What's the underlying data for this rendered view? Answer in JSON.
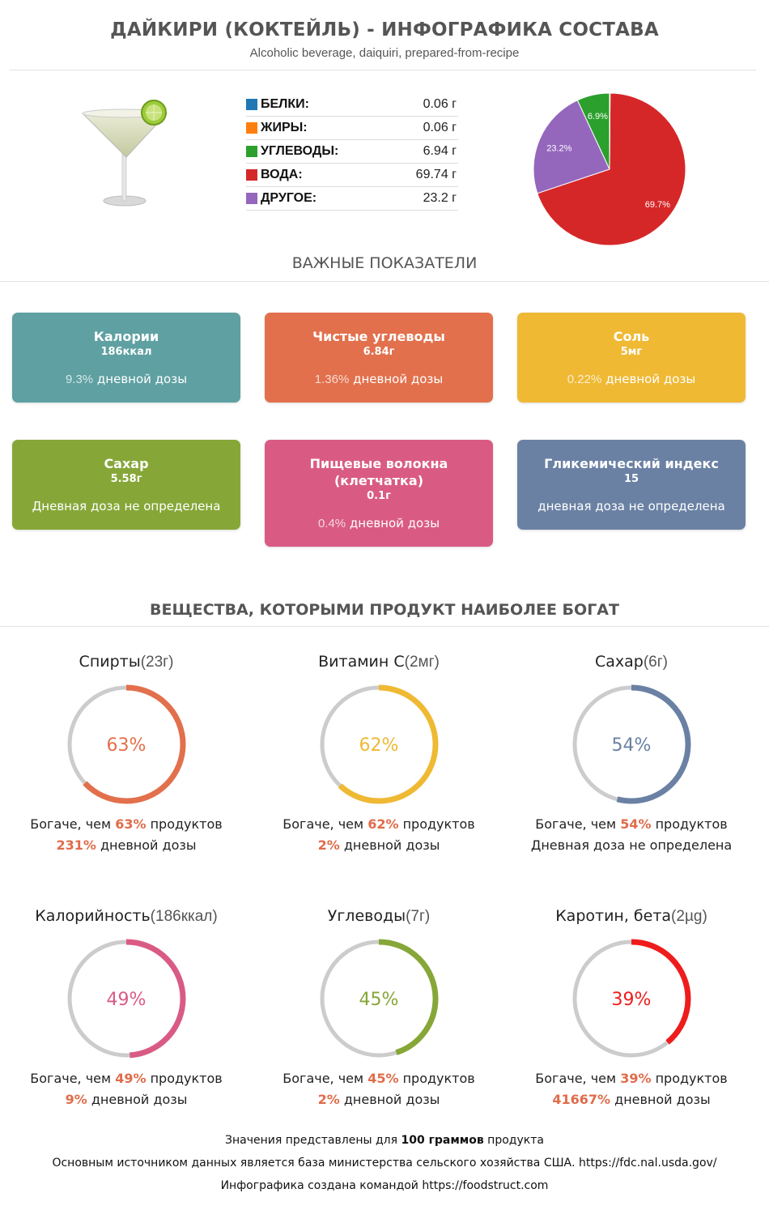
{
  "header": {
    "title": "ДАЙКИРИ (КОКТЕЙЛЬ) - ИНФОГРАФИКА СОСТАВА",
    "subtitle": "Alcoholic beverage, daiquiri, prepared-from-recipe"
  },
  "macros": [
    {
      "label": "БЕЛКИ:",
      "value": "0.06 г",
      "color": "#1f77b4"
    },
    {
      "label": "ЖИРЫ:",
      "value": "0.06 г",
      "color": "#ff7f0e"
    },
    {
      "label": "УГЛЕВОДЫ:",
      "value": "6.94 г",
      "color": "#2ca02c"
    },
    {
      "label": "ВОДА:",
      "value": "69.74 г",
      "color": "#d62728"
    },
    {
      "label": "ДРУГОЕ:",
      "value": "23.2 г",
      "color": "#9467bd"
    }
  ],
  "chart_data": {
    "type": "pie",
    "categories": [
      "Белки",
      "Жиры",
      "Углеводы",
      "Вода",
      "Другое"
    ],
    "values": [
      0.06,
      0.06,
      6.94,
      69.74,
      23.2
    ],
    "slice_labels": [
      "",
      "",
      "6.9%",
      "69.7%",
      "23.2%"
    ],
    "colors": [
      "#1f77b4",
      "#ff7f0e",
      "#2ca02c",
      "#d62728",
      "#9467bd"
    ]
  },
  "key_section": {
    "title": "ВАЖНЫЕ ПОКАЗАТЕЛИ"
  },
  "cards": [
    {
      "name": "Калории",
      "value": "186ккал",
      "pct": "9.3%",
      "dv_text": " дневной дозы",
      "color": "#5fa0a2"
    },
    {
      "name": "Чистые углеводы",
      "value": "6.84г",
      "pct": "1.36%",
      "dv_text": " дневной дозы",
      "color": "#e2704c"
    },
    {
      "name": "Соль",
      "value": "5мг",
      "pct": "0.22%",
      "dv_text": " дневной дозы",
      "color": "#efb934"
    },
    {
      "name": "Сахар",
      "value": "5.58г",
      "pct": "",
      "dv_text": "Дневная доза не определена",
      "color": "#86a738"
    },
    {
      "name": "Пищевые волокна (клетчатка)",
      "value": "0.1г",
      "pct": "0.4%",
      "dv_text": " дневной дозы",
      "color": "#d95b84"
    },
    {
      "name": "Гликемический индекс",
      "value": "15",
      "pct": "",
      "dv_text": "дневная доза не определена",
      "color": "#6a81a4"
    }
  ],
  "rich_section": {
    "title": "ВЕЩЕСТВА, КОТОРЫМИ ПРОДУКТ НАИБОЛЕЕ БОГАТ"
  },
  "rich_items": [
    {
      "name": "Спирты",
      "amount": "(23г)",
      "percent": 63,
      "percent_text": "63%",
      "color": "#e2704c",
      "line1_pre": "Богаче, чем ",
      "line1_pct": "63%",
      "line1_post": " продуктов",
      "line2_pct": "231%",
      "line2_post": " дневной дозы"
    },
    {
      "name": "Витамин C",
      "amount": "(2мг)",
      "percent": 62,
      "percent_text": "62%",
      "color": "#efb934",
      "line1_pre": "Богаче, чем ",
      "line1_pct": "62%",
      "line1_post": " продуктов",
      "line2_pct": "2%",
      "line2_post": " дневной дозы"
    },
    {
      "name": "Сахар",
      "amount": "(6г)",
      "percent": 54,
      "percent_text": "54%",
      "color": "#6a81a4",
      "line1_pre": "Богаче, чем ",
      "line1_pct": "54%",
      "line1_post": " продуктов",
      "line2_pct": "",
      "line2_post": "Дневная доза не определена"
    },
    {
      "name": "Калорийность",
      "amount": "(186ккал)",
      "percent": 49,
      "percent_text": "49%",
      "color": "#d95b84",
      "line1_pre": "Богаче, чем ",
      "line1_pct": "49%",
      "line1_post": " продуктов",
      "line2_pct": "9%",
      "line2_post": " дневной дозы"
    },
    {
      "name": "Углеводы",
      "amount": "(7г)",
      "percent": 45,
      "percent_text": "45%",
      "color": "#86a738",
      "line1_pre": "Богаче, чем ",
      "line1_pct": "45%",
      "line1_post": " продуктов",
      "line2_pct": "2%",
      "line2_post": " дневной дозы"
    },
    {
      "name": "Каротин, бета",
      "amount": "(2µg)",
      "percent": 39,
      "percent_text": "39%",
      "color": "#ee1c1c",
      "line1_pre": "Богаче, чем ",
      "line1_pct": "39%",
      "line1_post": " продуктов",
      "line2_pct": "41667%",
      "line2_post": " дневной дозы"
    }
  ],
  "footer": {
    "line1_pre": "Значения представлены для ",
    "line1_bold": "100 граммов",
    "line1_post": " продукта",
    "line2": "Основным источником данных является база министерства сельского хозяйства США. https://fdc.nal.usda.gov/",
    "line3": "Инфографика создана командой https://foodstruct.com"
  }
}
